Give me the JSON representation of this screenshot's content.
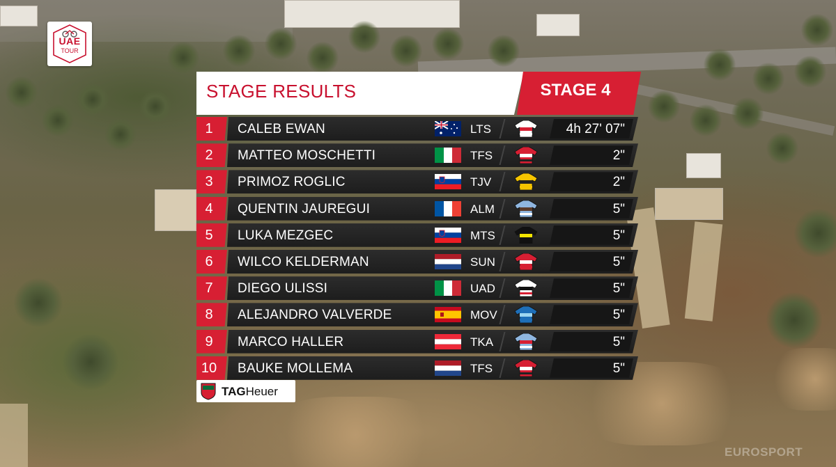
{
  "logo": {
    "line1": "UAE",
    "line2": "TOUR",
    "brand_color": "#c8102e"
  },
  "header": {
    "title": "STAGE RESULTS",
    "stage": "STAGE 4",
    "accent_color": "#d71f33"
  },
  "results": [
    {
      "pos": "1",
      "name": "CALEB EWAN",
      "flag": "australia",
      "team": "LTS",
      "jersey": "lts",
      "time": "4h 27' 07\""
    },
    {
      "pos": "2",
      "name": "MATTEO MOSCHETTI",
      "flag": "italy",
      "team": "TFS",
      "jersey": "tfs",
      "time": "2\""
    },
    {
      "pos": "3",
      "name": "PRIMOZ ROGLIC",
      "flag": "slovenia",
      "team": "TJV",
      "jersey": "tjv",
      "time": "2\""
    },
    {
      "pos": "4",
      "name": "QUENTIN JAUREGUI",
      "flag": "france",
      "team": "ALM",
      "jersey": "alm",
      "time": "5\""
    },
    {
      "pos": "5",
      "name": "LUKA MEZGEC",
      "flag": "slovenia",
      "team": "MTS",
      "jersey": "mts",
      "time": "5\""
    },
    {
      "pos": "6",
      "name": "WILCO KELDERMAN",
      "flag": "netherlands",
      "team": "SUN",
      "jersey": "sun",
      "time": "5\""
    },
    {
      "pos": "7",
      "name": "DIEGO ULISSI",
      "flag": "italy",
      "team": "UAD",
      "jersey": "uad",
      "time": "5\""
    },
    {
      "pos": "8",
      "name": "ALEJANDRO VALVERDE",
      "flag": "spain",
      "team": "MOV",
      "jersey": "mov",
      "time": "5\""
    },
    {
      "pos": "9",
      "name": "MARCO HALLER",
      "flag": "austria",
      "team": "TKA",
      "jersey": "tka",
      "time": "5\""
    },
    {
      "pos": "10",
      "name": "BAUKE MOLLEMA",
      "flag": "netherlands",
      "team": "TFS",
      "jersey": "tfs",
      "time": "5\""
    }
  ],
  "sponsor": {
    "name_bold": "TAG",
    "name_rest": "Heuer",
    "badge_text": "TAG HEUER"
  },
  "watermark": "EUROSPORT"
}
